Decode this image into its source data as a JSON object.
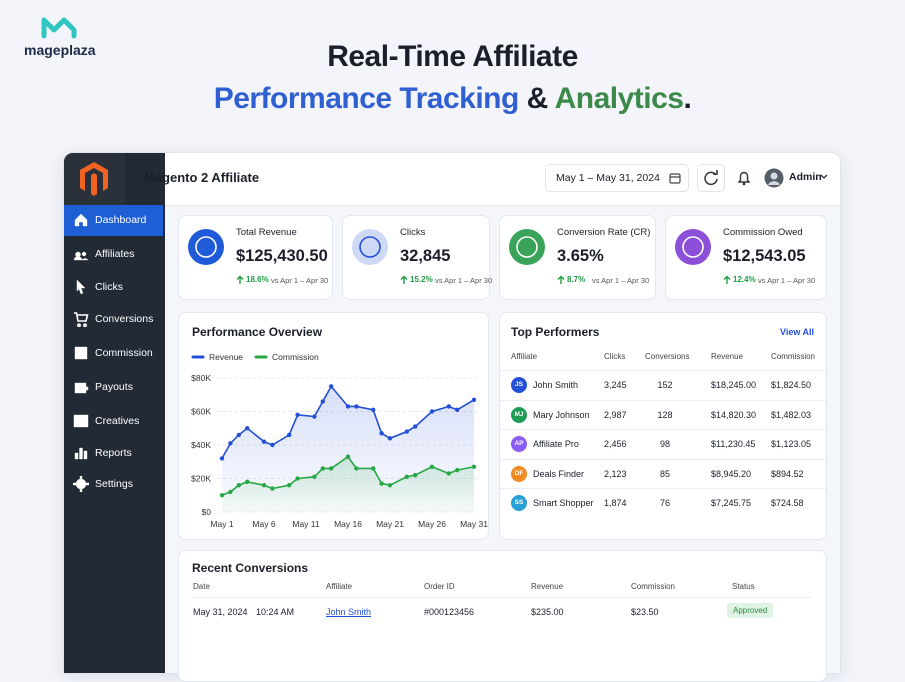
{
  "brand": {
    "name": "mageplaza"
  },
  "headline": {
    "line1": "Real-Time Affiliate",
    "line2": [
      "Performance Tracking",
      "&",
      "Analytics",
      "."
    ]
  },
  "app": {
    "title": "Magento 2 Affiliate",
    "date_range": "May 1 – May 31, 2024",
    "user": "Admin"
  },
  "sidebar": {
    "items": [
      "Dashboard",
      "Affiliates",
      "Clicks",
      "Conversions",
      "Commission",
      "Payouts",
      "Creatives",
      "Reports",
      "Settings"
    ],
    "active": 0
  },
  "kpis": [
    {
      "label": "Total Revenue",
      "value": "$125,430.50",
      "change": "18.6%",
      "comparison": "vs Apr 1 – Apr 30"
    },
    {
      "label": "Clicks",
      "value": "32,845",
      "change": "15.2%",
      "comparison": "vs Apr 1 – Apr 30"
    },
    {
      "label": "Conversion Rate (CR)",
      "value": "3.65%",
      "change": "8.7%",
      "comparison": "vs Apr 1 – Apr 30"
    },
    {
      "label": "Commission Owed",
      "value": "$12,543.05",
      "change": "12.4%",
      "comparison": "vs Apr 1 – Apr 30"
    }
  ],
  "chart_data": {
    "type": "line",
    "title": "Performance Overview",
    "x": [
      1,
      2,
      3,
      4,
      6,
      7,
      9,
      10,
      12,
      13,
      14,
      16,
      17,
      19,
      20,
      21,
      23,
      24,
      26,
      28,
      29,
      31
    ],
    "xlim": [
      1,
      31
    ],
    "xticks": [
      {
        "value": 1,
        "label": "May 1"
      },
      {
        "value": 6,
        "label": "May 6"
      },
      {
        "value": 11,
        "label": "May 11"
      },
      {
        "value": 16,
        "label": "May 16"
      },
      {
        "value": 21,
        "label": "May 21"
      },
      {
        "value": 26,
        "label": "May 26"
      },
      {
        "value": 31,
        "label": "May 31"
      }
    ],
    "ylim": [
      0,
      80000
    ],
    "yticks": [
      {
        "value": 0,
        "label": "$0"
      },
      {
        "value": 20000,
        "label": "$20K"
      },
      {
        "value": 40000,
        "label": "$40K"
      },
      {
        "value": 60000,
        "label": "$60K"
      },
      {
        "value": 80000,
        "label": "$80K"
      }
    ],
    "grid": true,
    "series": [
      {
        "name": "Revenue",
        "color": "#2450d8",
        "values": [
          32000,
          41000,
          46000,
          50000,
          42000,
          40000,
          46000,
          58000,
          57000,
          66000,
          75000,
          63000,
          63000,
          61000,
          47000,
          44000,
          48000,
          51000,
          60000,
          63000,
          61000,
          67000
        ]
      },
      {
        "name": "Commission",
        "color": "#27a844",
        "values": [
          10000,
          12000,
          16000,
          18000,
          16000,
          14000,
          16000,
          20000,
          21000,
          26000,
          26000,
          33000,
          26000,
          26000,
          17000,
          16000,
          21000,
          22000,
          27000,
          23000,
          25000,
          27000
        ]
      }
    ]
  },
  "top_performers": {
    "title": "Top Performers",
    "action": "View All",
    "columns": [
      "Affiliate",
      "Clicks",
      "Conversions",
      "Revenue",
      "Commission"
    ],
    "rows": [
      {
        "initials": "JS",
        "color": "#2450d8",
        "cells": [
          "John Smith",
          "3,245",
          "152",
          "$18,245.00",
          "$1,824.50"
        ]
      },
      {
        "initials": "MJ",
        "color": "#1f9d55",
        "cells": [
          "Mary Johnson",
          "2,987",
          "128",
          "$14,820.30",
          "$1,482.03"
        ]
      },
      {
        "initials": "AP",
        "color": "#8b5cf6",
        "cells": [
          "Affiliate Pro",
          "2,456",
          "98",
          "$11,230.45",
          "$1,123.05"
        ]
      },
      {
        "initials": "DF",
        "color": "#f08a24",
        "cells": [
          "Deals Finder",
          "2,123",
          "85",
          "$8,945.20",
          "$894.52"
        ]
      },
      {
        "initials": "SS",
        "color": "#27a0d8",
        "cells": [
          "Smart Shopper",
          "1,874",
          "76",
          "$7,245.75",
          "$724.58"
        ]
      }
    ]
  },
  "recent_conversions": {
    "title": "Recent Conversions",
    "columns": [
      "Date",
      "Affiliate",
      "Order ID",
      "Revenue",
      "Commission",
      "Status"
    ],
    "rows": [
      {
        "date": "May 31, 2024",
        "time": "10:24 AM",
        "affiliate": "John Smith",
        "order": "#000123456",
        "revenue": "$235.00",
        "commission": "$23.50",
        "status": "Approved"
      }
    ]
  }
}
